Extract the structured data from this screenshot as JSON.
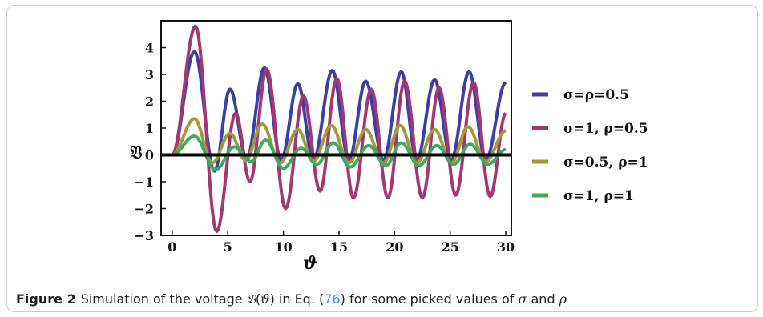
{
  "chart_data": {
    "type": "line",
    "xlabel": "ϑ",
    "ylabel": "𝔙",
    "xlim": [
      -1,
      30.5
    ],
    "ylim": [
      -3,
      5
    ],
    "xticks": [
      "0",
      "5",
      "10",
      "15",
      "20",
      "25",
      "30"
    ],
    "yticks": [
      "4",
      "3",
      "2",
      "1",
      "0",
      "−1",
      "−2",
      "−3"
    ],
    "legend": "right",
    "series": [
      {
        "name": "σ=ρ=0.5",
        "color": "#3b3fa5",
        "peaks": [
          [
            0,
            0
          ],
          [
            2,
            3.85
          ],
          [
            3.8,
            -0.6
          ],
          [
            5.2,
            2.45
          ],
          [
            6.7,
            -0.15
          ],
          [
            8.3,
            3.25
          ],
          [
            9.8,
            -0.2
          ],
          [
            11.3,
            2.65
          ],
          [
            12.7,
            -0.2
          ],
          [
            14.4,
            3.15
          ],
          [
            15.9,
            -0.2
          ],
          [
            17.4,
            2.75
          ],
          [
            19,
            -0.2
          ],
          [
            20.6,
            3.1
          ],
          [
            22,
            -0.2
          ],
          [
            23.6,
            2.8
          ],
          [
            25.1,
            -0.2
          ],
          [
            26.7,
            3.1
          ],
          [
            28.2,
            -0.2
          ],
          [
            30,
            2.7
          ]
        ]
      },
      {
        "name": "σ=1, ρ=0.5",
        "color": "#a4376f",
        "peaks": [
          [
            0,
            0
          ],
          [
            2.1,
            4.8
          ],
          [
            4,
            -2.85
          ],
          [
            5.7,
            1.55
          ],
          [
            7,
            -1.0
          ],
          [
            8.5,
            3.2
          ],
          [
            10.2,
            -2.0
          ],
          [
            11.8,
            2.2
          ],
          [
            13.3,
            -1.35
          ],
          [
            14.8,
            2.85
          ],
          [
            16.3,
            -1.6
          ],
          [
            17.9,
            2.45
          ],
          [
            19.4,
            -1.6
          ],
          [
            20.9,
            2.75
          ],
          [
            22.5,
            -1.6
          ],
          [
            24,
            2.5
          ],
          [
            25.5,
            -1.5
          ],
          [
            27.1,
            2.7
          ],
          [
            28.6,
            -1.55
          ],
          [
            30,
            1.55
          ]
        ]
      },
      {
        "name": "σ=0.5, ρ=1",
        "color": "#a09a3c",
        "peaks": [
          [
            0,
            0
          ],
          [
            2,
            1.35
          ],
          [
            3.6,
            -0.3
          ],
          [
            5.2,
            0.8
          ],
          [
            6.6,
            -0.2
          ],
          [
            8.1,
            1.15
          ],
          [
            9.7,
            -0.3
          ],
          [
            11.3,
            0.95
          ],
          [
            12.7,
            -0.25
          ],
          [
            14.3,
            1.1
          ],
          [
            15.9,
            -0.3
          ],
          [
            17.4,
            0.95
          ],
          [
            19,
            -0.3
          ],
          [
            20.5,
            1.1
          ],
          [
            22,
            -0.3
          ],
          [
            23.6,
            0.95
          ],
          [
            25.1,
            -0.3
          ],
          [
            26.6,
            1.05
          ],
          [
            28.2,
            -0.25
          ],
          [
            30,
            0.9
          ]
        ]
      },
      {
        "name": "σ=1, ρ=1",
        "color": "#3faa5e",
        "peaks": [
          [
            0,
            0
          ],
          [
            2,
            0.7
          ],
          [
            3.9,
            -0.55
          ],
          [
            5.6,
            0.3
          ],
          [
            7.1,
            -0.25
          ],
          [
            8.4,
            0.55
          ],
          [
            10,
            -0.5
          ],
          [
            11.6,
            0.25
          ],
          [
            13,
            -0.35
          ],
          [
            14.5,
            0.45
          ],
          [
            16,
            -0.45
          ],
          [
            17.7,
            0.35
          ],
          [
            19.2,
            -0.4
          ],
          [
            20.6,
            0.45
          ],
          [
            22.2,
            -0.4
          ],
          [
            23.8,
            0.35
          ],
          [
            25.3,
            -0.35
          ],
          [
            26.8,
            0.4
          ],
          [
            28.4,
            -0.35
          ],
          [
            30,
            0.2
          ]
        ]
      }
    ]
  },
  "caption": {
    "label": "Figure 2",
    "text_before": "Simulation of the voltage ",
    "symbol_V": "𝔙",
    "symbol_theta": "ϑ",
    "text_in": ") in Eq. (",
    "eq_ref": "76",
    "text_after": ") for some picked values of ",
    "sigma": "σ",
    "and": " and ",
    "rho": "ρ"
  }
}
